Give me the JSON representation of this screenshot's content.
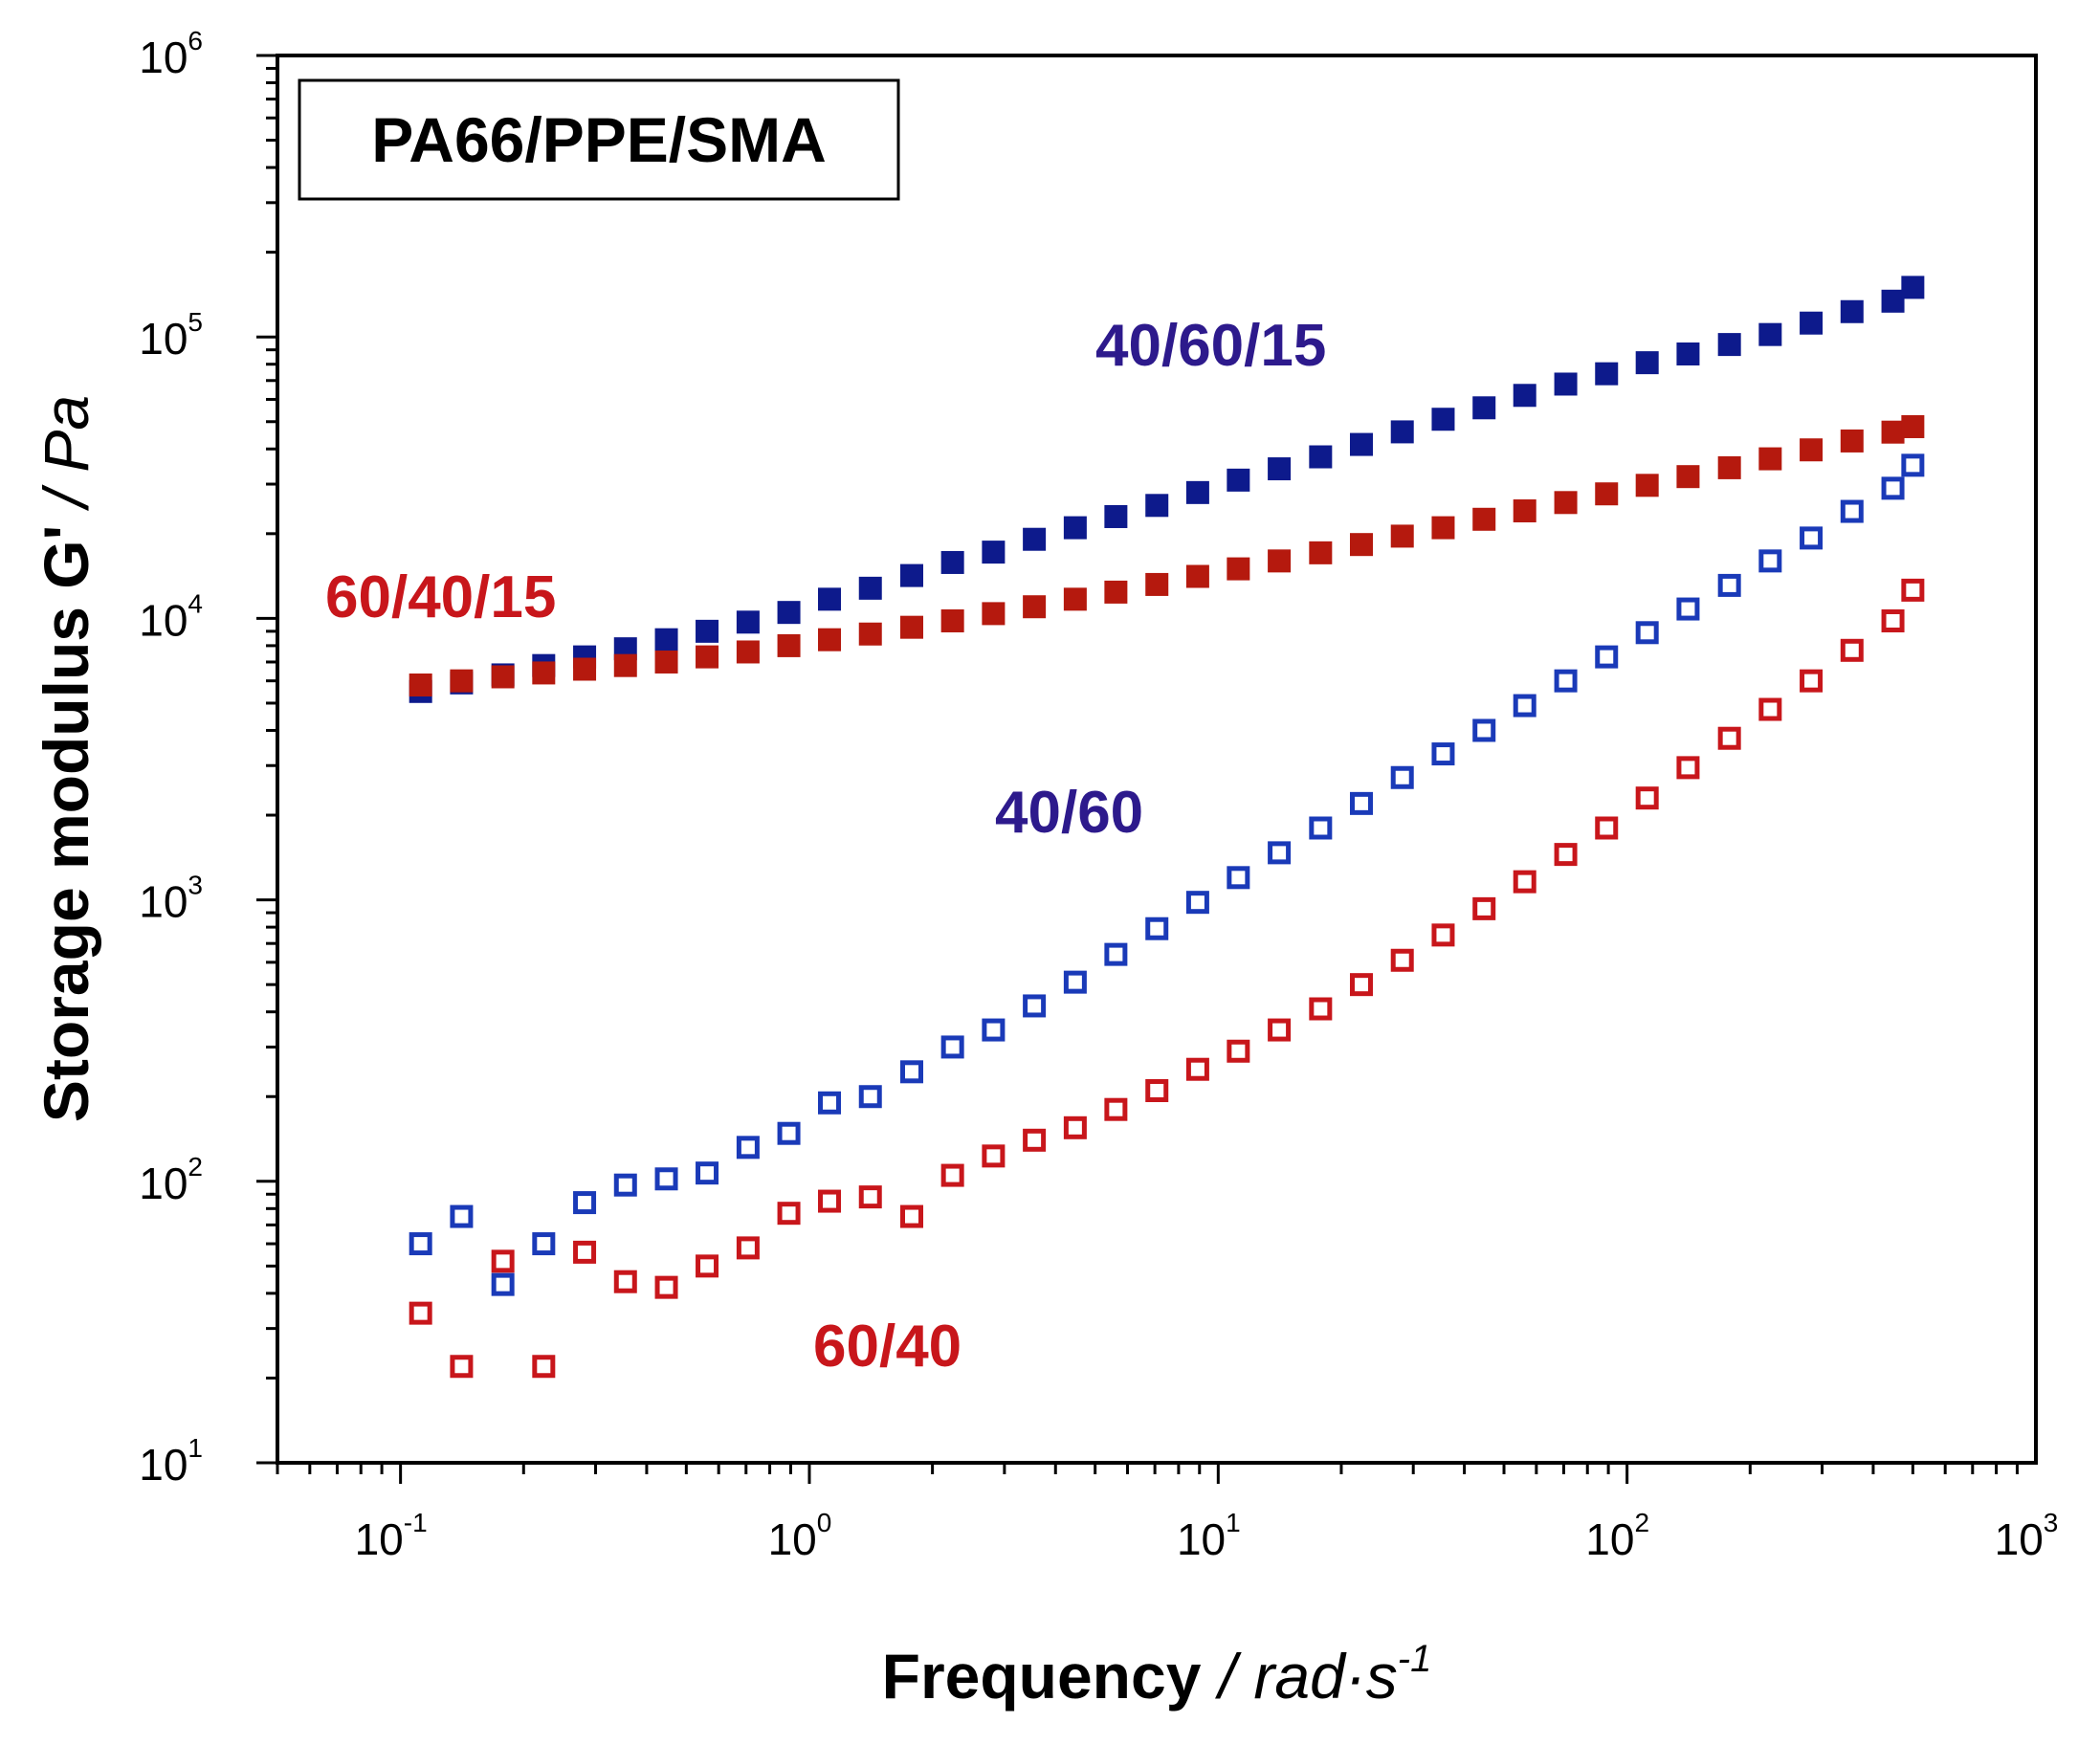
{
  "chart_data": {
    "type": "scatter",
    "title_box": "PA66/PPE/SMA",
    "xlabel": {
      "main": "Frequency",
      "separator": " / ",
      "unit": "rad·s",
      "unit_exp": "-1"
    },
    "ylabel": {
      "main": "Storage modulus G'",
      "separator": " / ",
      "unit": "Pa"
    },
    "xscale": "log",
    "yscale": "log",
    "xlim": [
      0.05,
      1000
    ],
    "ylim": [
      10,
      1000000
    ],
    "x_ticks": [
      {
        "base": "10",
        "exp": "-1",
        "value": 0.1
      },
      {
        "base": "10",
        "exp": "0",
        "value": 1
      },
      {
        "base": "10",
        "exp": "1",
        "value": 10
      },
      {
        "base": "10",
        "exp": "2",
        "value": 100
      },
      {
        "base": "10",
        "exp": "3",
        "value": 1000
      }
    ],
    "y_ticks": [
      {
        "base": "10",
        "exp": "1",
        "value": 10
      },
      {
        "base": "10",
        "exp": "2",
        "value": 100
      },
      {
        "base": "10",
        "exp": "3",
        "value": 1000
      },
      {
        "base": "10",
        "exp": "4",
        "value": 10000
      },
      {
        "base": "10",
        "exp": "5",
        "value": 100000
      },
      {
        "base": "10",
        "exp": "6",
        "value": 1000000
      }
    ],
    "x": [
      0.112,
      0.141,
      0.178,
      0.224,
      0.282,
      0.355,
      0.447,
      0.562,
      0.708,
      0.891,
      1.12,
      1.41,
      1.78,
      2.24,
      2.82,
      3.55,
      4.47,
      5.62,
      7.08,
      8.91,
      11.2,
      14.1,
      17.8,
      22.4,
      28.2,
      35.5,
      44.7,
      56.2,
      70.8,
      89.1,
      112,
      141,
      178,
      224,
      282,
      355,
      447,
      500
    ],
    "series": [
      {
        "name": "40/60/15",
        "marker": "filled-square",
        "color": "#0d1a8c",
        "label_color": "#2d1a8c",
        "values": [
          5500,
          5900,
          6300,
          6800,
          7300,
          7800,
          8400,
          9000,
          9700,
          10500,
          11700,
          12800,
          14200,
          15800,
          17200,
          19100,
          21000,
          23000,
          25200,
          28000,
          31000,
          34000,
          37500,
          41500,
          46000,
          51000,
          56000,
          62000,
          68000,
          74000,
          81000,
          87000,
          94000,
          102000,
          112000,
          123000,
          134000,
          150000
        ]
      },
      {
        "name": "60/40/15",
        "marker": "filled-square",
        "color": "#b5190e",
        "label_color": "#c8161b",
        "values": [
          5800,
          6000,
          6200,
          6400,
          6600,
          6800,
          7000,
          7300,
          7600,
          8000,
          8400,
          8800,
          9300,
          9800,
          10400,
          11000,
          11700,
          12400,
          13200,
          14100,
          15000,
          16000,
          17100,
          18300,
          19600,
          21000,
          22500,
          24100,
          25800,
          27700,
          29700,
          31900,
          34300,
          36900,
          39700,
          42700,
          45900,
          48000
        ]
      },
      {
        "name": "40/60",
        "marker": "open-square",
        "color": "#1a3ab8",
        "label_color": "#2d1a8c",
        "values": [
          60,
          75,
          43,
          60,
          84,
          97,
          102,
          107,
          132,
          148,
          190,
          200,
          245,
          300,
          345,
          420,
          510,
          640,
          790,
          980,
          1200,
          1470,
          1800,
          2200,
          2720,
          3300,
          4000,
          4900,
          6000,
          7300,
          8900,
          10800,
          13100,
          16000,
          19300,
          24000,
          29000,
          35000
        ]
      },
      {
        "name": "60/40",
        "marker": "open-square",
        "color": "#c8161b",
        "label_color": "#c8161b",
        "values": [
          34,
          22,
          52,
          22,
          56,
          44,
          42,
          50,
          58,
          77,
          85,
          88,
          75,
          105,
          123,
          140,
          155,
          180,
          210,
          250,
          290,
          345,
          410,
          500,
          610,
          750,
          930,
          1160,
          1450,
          1800,
          2300,
          2950,
          3750,
          4750,
          6000,
          7700,
          9800,
          12600
        ]
      }
    ],
    "grid": false,
    "legend": "inline labels"
  }
}
